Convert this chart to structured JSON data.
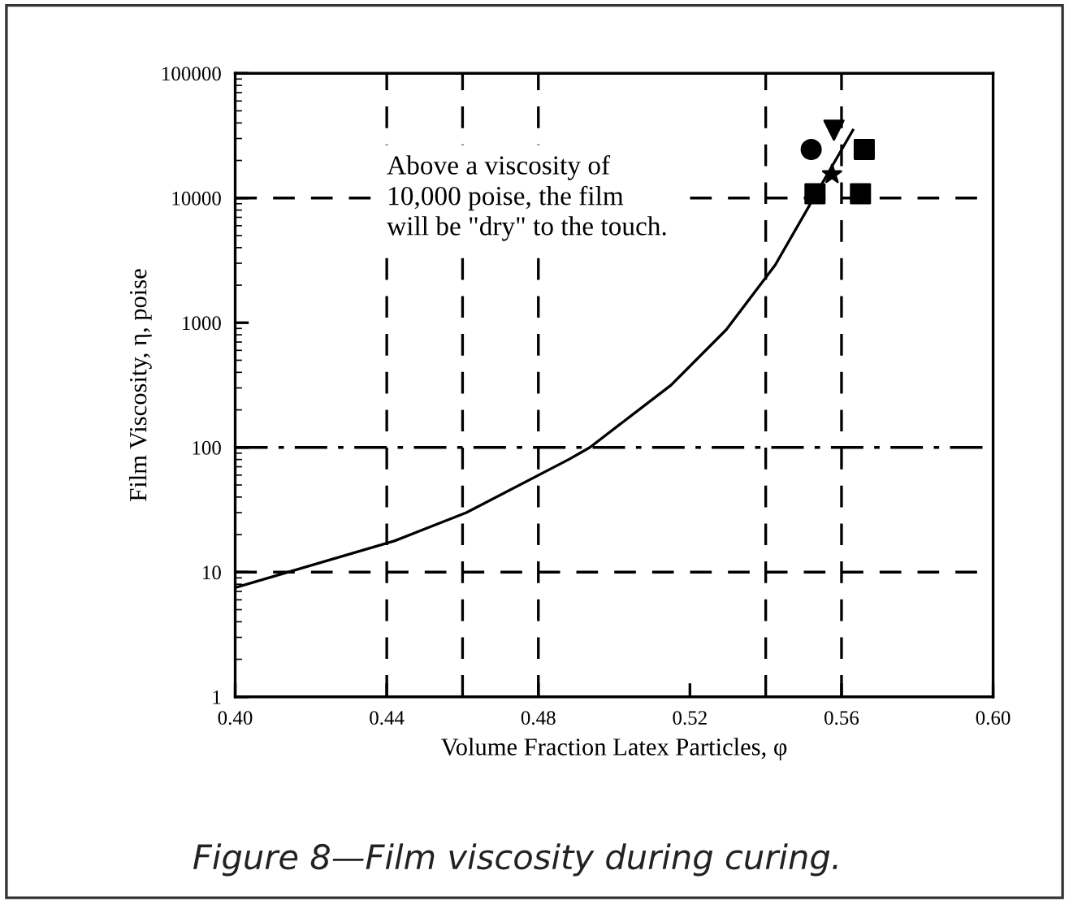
{
  "chart_data": {
    "type": "line",
    "xlabel": "Volume Fraction Latex Particles, φ",
    "ylabel": "Film Viscosity, η, poise",
    "log": "y",
    "xlim": [
      0.4,
      0.6
    ],
    "xticks": [
      {
        "value": 0.4,
        "label": "0.40"
      },
      0.44,
      0.48,
      0.52,
      0.56,
      {
        "value": 0.6,
        "label": "0.60"
      }
    ],
    "ylim": [
      1,
      100000
    ],
    "yticks": [
      1,
      10,
      100,
      1000,
      10000,
      100000
    ],
    "grid": false,
    "legend": false,
    "series": [
      {
        "color": "#000000",
        "x": [
          0.4,
          0.442,
          0.461,
          0.488,
          0.4936,
          0.515,
          0.5296,
          0.5425,
          0.5536,
          0.563
        ],
        "values": [
          7.5,
          17.8,
          30,
          80,
          100,
          316,
          880,
          2900,
          11200,
          35000
        ]
      },
      {
        "type": "scatter",
        "marker": "triangle",
        "color": "#000000",
        "x": [
          0.558
        ],
        "values": [
          35000
        ]
      },
      {
        "type": "scatter",
        "marker": "circle",
        "color": "#000000",
        "x": [
          0.552
        ],
        "values": [
          24500
        ]
      },
      {
        "type": "scatter",
        "marker": "square",
        "color": "#000000",
        "x": [
          0.566,
          0.553,
          0.565
        ],
        "values": [
          24500,
          10800,
          10800
        ]
      },
      {
        "type": "scatter",
        "marker": "star",
        "color": "#000000",
        "x": [
          0.5575
        ],
        "values": [
          15500
        ]
      }
    ],
    "ref_lines": [
      {
        "axis": "y",
        "value": 10000,
        "line_style": "dashed"
      },
      {
        "axis": "y",
        "value": 100,
        "line_style": "dashdot"
      },
      {
        "axis": "y",
        "value": 10,
        "line_style": "dashed"
      },
      {
        "axis": "x",
        "value": 0.44,
        "line_style": "dashed"
      },
      {
        "axis": "x",
        "value": 0.46,
        "line_style": "dashed"
      },
      {
        "axis": "x",
        "value": 0.48,
        "line_style": "dashed"
      },
      {
        "axis": "x",
        "value": 0.54,
        "line_style": "dashed"
      },
      {
        "axis": "x",
        "value": 0.56,
        "line_style": "dashed"
      }
    ],
    "annotations": [
      {
        "text": "Above a viscosity of\n10,000 poise, the film\nwill be \"dry\" to the touch.",
        "x": 0.44,
        "y": 10000
      },
      "Figure 8—Film viscosity during curing."
    ]
  }
}
